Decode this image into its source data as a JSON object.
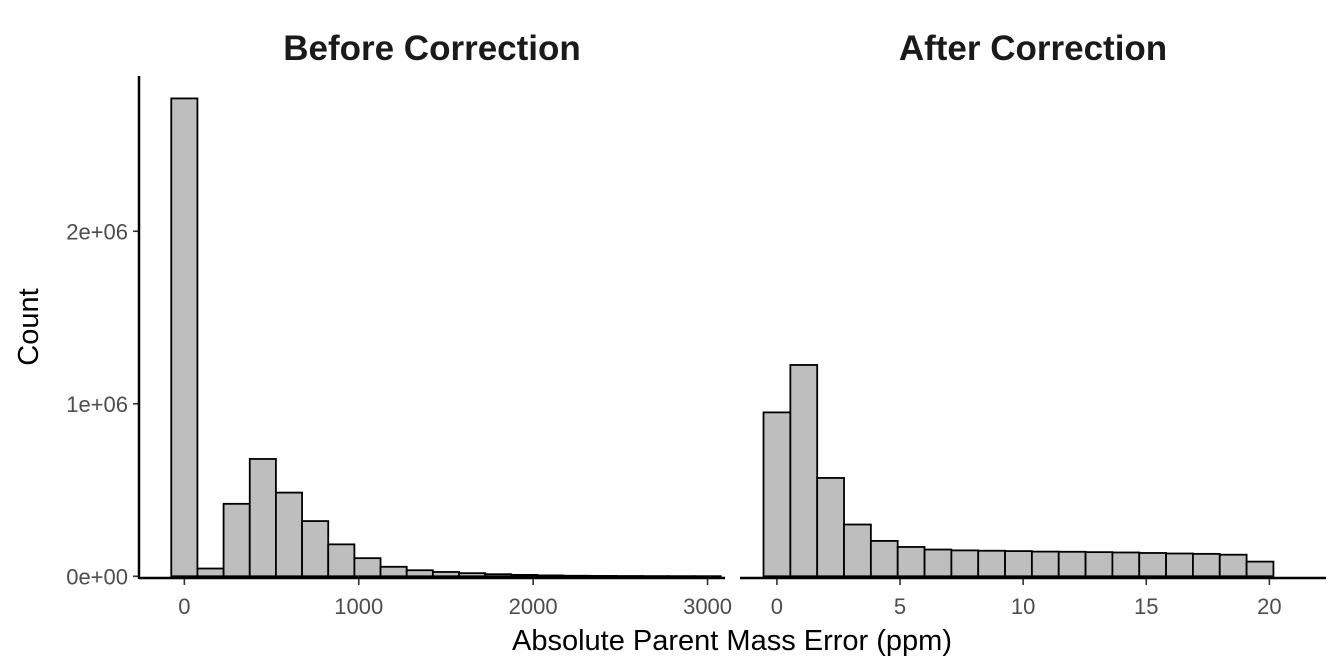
{
  "chart_data": {
    "type": "bar",
    "xlabel": "Absolute Parent Mass Error (ppm)",
    "ylabel": "Count",
    "ylim": [
      -10000,
      2900000
    ],
    "y_ticks": [
      0,
      1000000,
      2000000
    ],
    "y_tick_labels": [
      "0e+00",
      "1e+06",
      "2e+06"
    ],
    "bar_fill": "#bebebe",
    "bar_stroke": "#000000",
    "grid": false,
    "facets": [
      {
        "title": "Before Correction",
        "xlim": [
          -260,
          3100
        ],
        "x_ticks": [
          0,
          1000,
          2000,
          3000
        ],
        "x_tick_labels": [
          "0",
          "1000",
          "2000",
          "3000"
        ],
        "bin_width": 150,
        "bin_centers": [
          0,
          150,
          300,
          450,
          600,
          750,
          900,
          1050,
          1200,
          1350,
          1500,
          1650,
          1800,
          1950,
          2100,
          2250,
          2400,
          2550,
          2700,
          2850,
          3000
        ],
        "values": [
          2770000,
          45000,
          420000,
          680000,
          485000,
          320000,
          185000,
          105000,
          55000,
          35000,
          25000,
          18000,
          12000,
          8000,
          5000,
          3000,
          2000,
          1500,
          1000,
          700,
          500
        ]
      },
      {
        "title": "After Correction",
        "xlim": [
          -1.5,
          22.3
        ],
        "x_ticks": [
          0,
          5,
          10,
          15,
          20
        ],
        "x_tick_labels": [
          "0",
          "5",
          "10",
          "15",
          "20"
        ],
        "bin_width": 1.09,
        "bin_centers": [
          0,
          1.09,
          2.18,
          3.27,
          4.36,
          5.45,
          6.54,
          7.63,
          8.72,
          9.81,
          10.9,
          11.99,
          13.08,
          14.17,
          15.26,
          16.35,
          17.44,
          18.53,
          19.62
        ],
        "values": [
          950000,
          1225000,
          570000,
          300000,
          205000,
          170000,
          155000,
          150000,
          148000,
          146000,
          143000,
          142000,
          140000,
          138000,
          135000,
          132000,
          130000,
          125000,
          85000
        ]
      }
    ]
  }
}
